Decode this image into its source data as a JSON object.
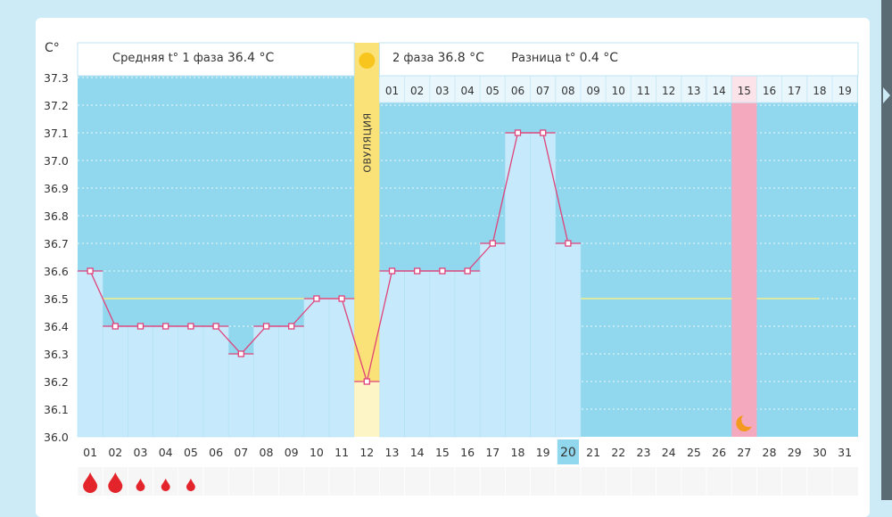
{
  "header": {
    "phase1_label": "Средняя t° 1 фаза",
    "phase1_value": "36.4 °C",
    "phase2_label": "2 фаза",
    "phase2_value": "36.8 °C",
    "diff_label": "Разница t°",
    "diff_value": "0.4 °C"
  },
  "ovulation_label": "ОВУЛЯЦИЯ",
  "colors": {
    "chart_bg": "#91d7ee",
    "bar_fill": "#c6eafb",
    "line": "#e0427a",
    "ovulation": "#fae278",
    "highlight_day": "#f5a9be",
    "today_cell": "#91d7ee",
    "average_line": "#f3ee8a",
    "drop": "#e3242b"
  },
  "chart_data": {
    "type": "line",
    "y_unit_label": "С°",
    "y_ticks": [
      "36.0",
      "36.1",
      "36.2",
      "36.3",
      "36.4",
      "36.5",
      "36.6",
      "36.7",
      "36.8",
      "36.9",
      "37.0",
      "37.1",
      "37.2",
      "37.3"
    ],
    "ylim": [
      36.0,
      37.3
    ],
    "x_day_labels": [
      "01",
      "02",
      "03",
      "04",
      "05",
      "06",
      "07",
      "08",
      "09",
      "10",
      "11",
      "12",
      "13",
      "14",
      "15",
      "16",
      "17",
      "18",
      "19",
      "20",
      "21",
      "22",
      "23",
      "24",
      "25",
      "26",
      "27",
      "28",
      "29",
      "30",
      "31"
    ],
    "phase2_day_labels": [
      "01",
      "02",
      "03",
      "04",
      "05",
      "06",
      "07",
      "08",
      "09",
      "10",
      "11",
      "12",
      "13",
      "14",
      "15",
      "16",
      "17",
      "18",
      "19"
    ],
    "series": [
      {
        "values": [
          36.6,
          36.4,
          36.4,
          36.4,
          36.4,
          36.4,
          36.3,
          36.4,
          36.4,
          36.5,
          36.5,
          36.2,
          36.6,
          36.6,
          36.6,
          36.6,
          36.7,
          37.1,
          37.1,
          36.7
        ]
      }
    ],
    "average_line_value": 36.5,
    "ovulation_day": "12",
    "today_day": "20",
    "highlighted_day": "27",
    "highlighted_icon": "crescent-moon-icon",
    "menstruation": [
      {
        "day": "01",
        "intensity": "heavy"
      },
      {
        "day": "02",
        "intensity": "heavy"
      },
      {
        "day": "03",
        "intensity": "light"
      },
      {
        "day": "04",
        "intensity": "light"
      },
      {
        "day": "05",
        "intensity": "light"
      }
    ]
  }
}
